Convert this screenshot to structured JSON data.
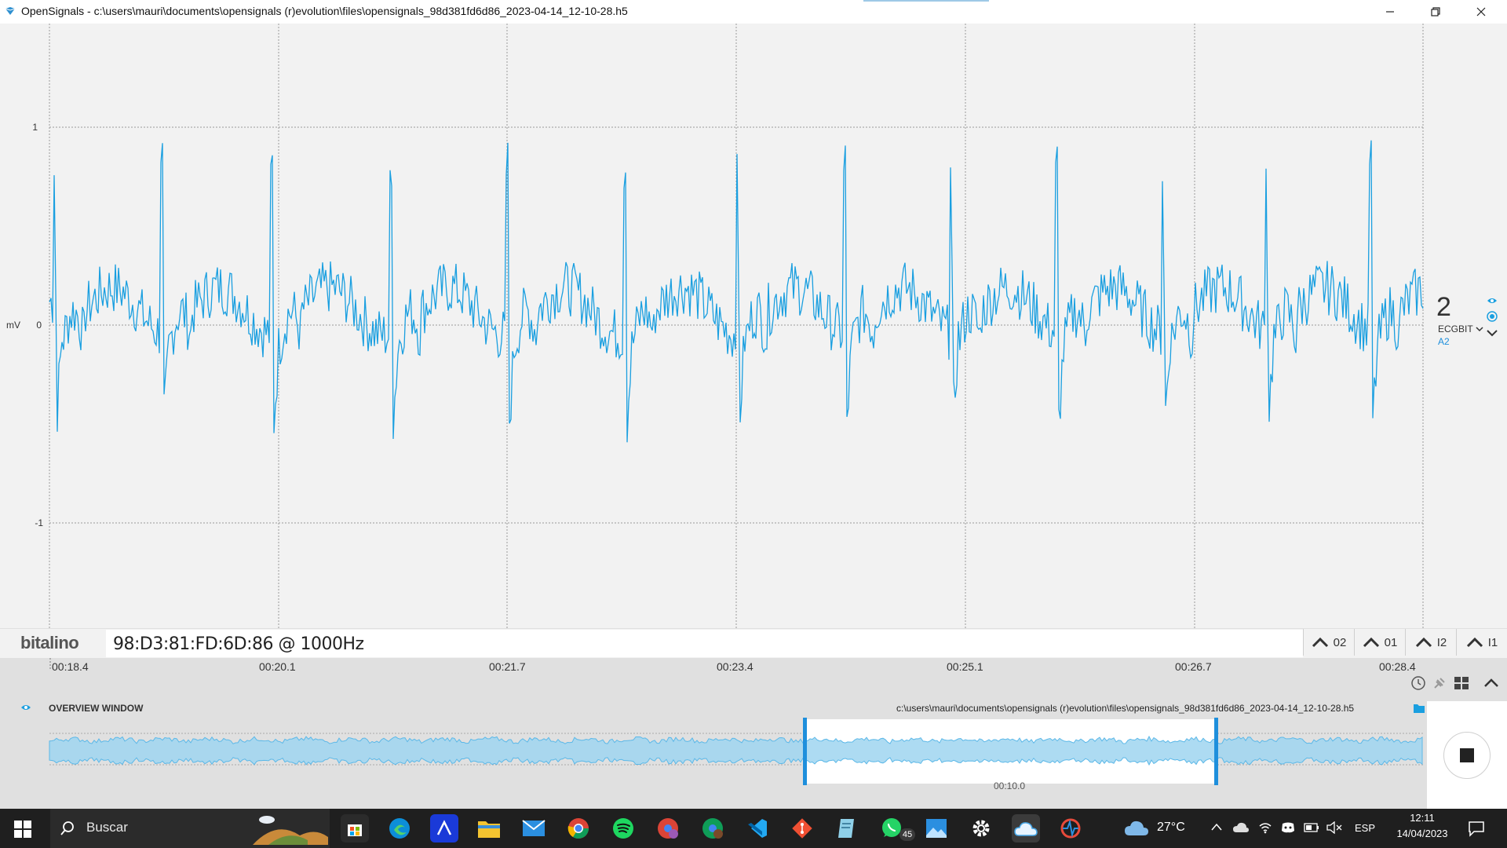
{
  "window": {
    "title": "OpenSignals - c:\\users\\mauri\\documents\\opensignals (r)evolution\\files\\opensignals_98d381fd6d86_2023-04-14_12-10-28.h5"
  },
  "plot": {
    "y_unit": "mV",
    "y_ticks": [
      "1",
      "0",
      "-1"
    ],
    "signal_color": "#1a9fe0"
  },
  "channel": {
    "number": "2",
    "name": "ECGBIT",
    "port": "A2"
  },
  "device": {
    "logo": "bitalino",
    "info": "98:D3:81:FD:6D:86 @ 1000Hz"
  },
  "channel_selectors": [
    "02",
    "01",
    "I2",
    "I1"
  ],
  "timeline": {
    "ticks": [
      "00:18.4",
      "00:20.1",
      "00:21.7",
      "00:23.4",
      "00:25.1",
      "00:26.7",
      "00:28.4"
    ]
  },
  "overview": {
    "title": "OVERVIEW WINDOW",
    "file_path": "c:\\users\\mauri\\documents\\opensignals (r)evolution\\files\\opensignals_98d381fd6d86_2023-04-14_12-10-28.h5",
    "window_duration": "00:10.0"
  },
  "taskbar": {
    "search_label": "Buscar",
    "whatsapp_badge": "45",
    "weather_temp": "27°C",
    "language": "ESP",
    "time": "12:11",
    "date": "14/04/2023",
    "apps": [
      "edge-icon",
      "affinity-icon",
      "file-explorer-icon",
      "mail-icon",
      "chrome-icon",
      "spotify-icon",
      "chrome-profile-m-icon",
      "chrome-profile-m2-icon",
      "vscode-icon",
      "git-icon",
      "notepad-icon",
      "whatsapp-icon",
      "photos-icon",
      "settings-icon",
      "onedrive-icon",
      "opensignals-icon"
    ]
  }
}
